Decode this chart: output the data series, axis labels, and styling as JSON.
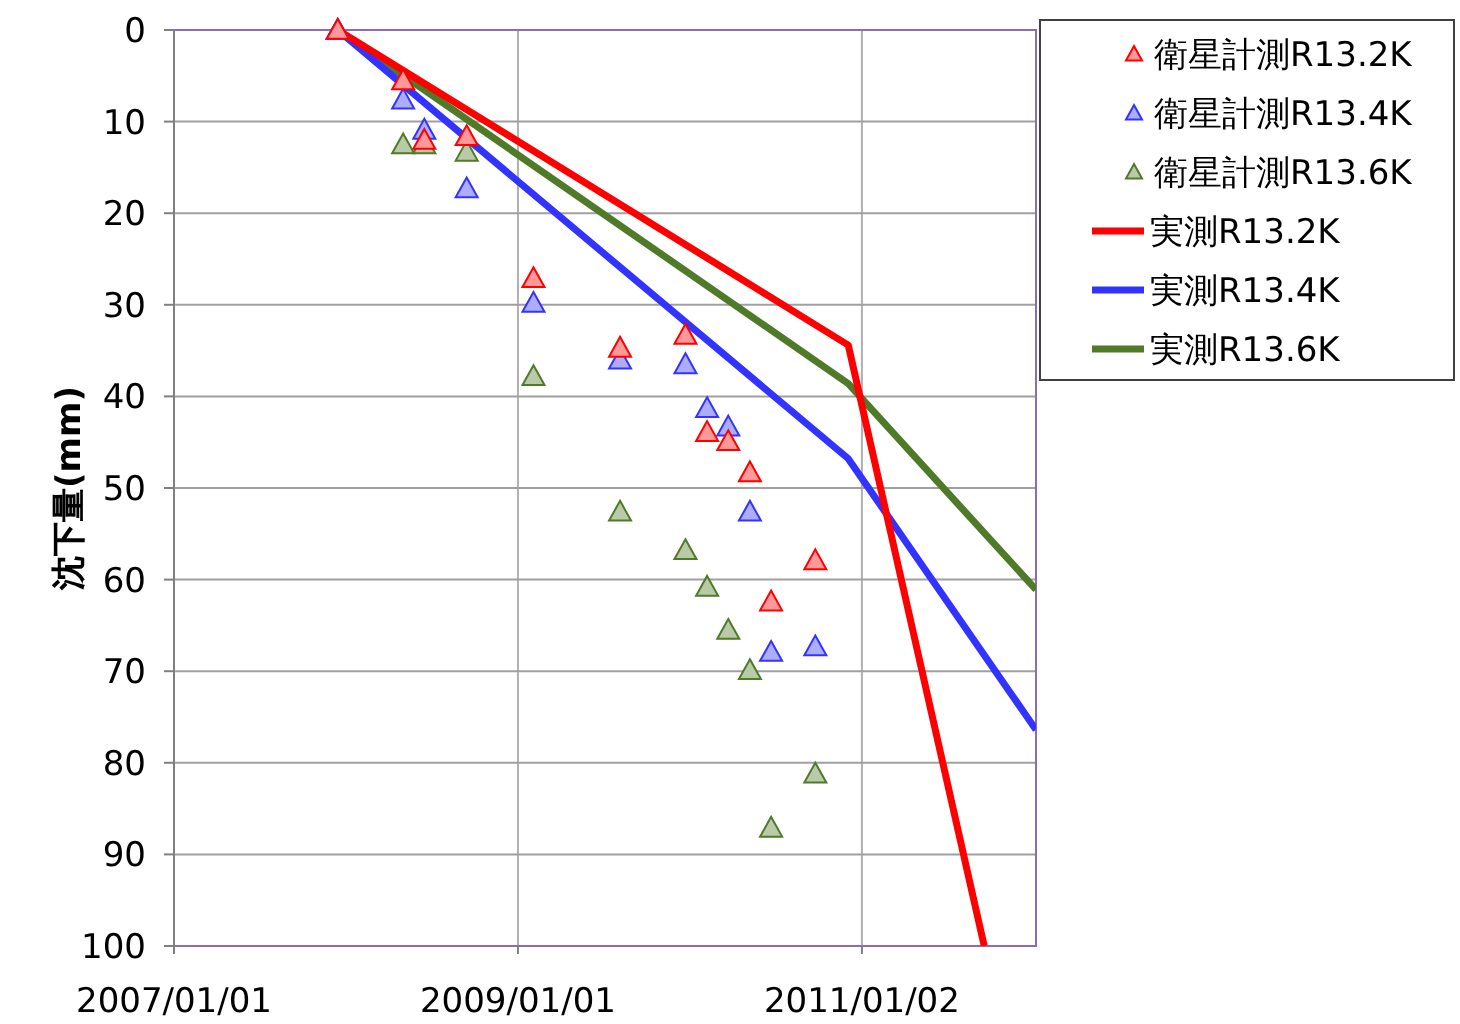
{
  "chart_data": {
    "type": "scatter",
    "ylabel": "沈下量(mm)",
    "xlim": [
      "2007-01-01",
      "2012-01-07"
    ],
    "xticks": [
      {
        "value": "2007-01-01",
        "label": "2007/01/01"
      },
      {
        "value": "2009-01-01",
        "label": "2009/01/01"
      },
      {
        "value": "2011-01-02",
        "label": "2011/01/02"
      }
    ],
    "ylim": [
      100,
      0
    ],
    "yticks": [
      0,
      10,
      20,
      30,
      40,
      50,
      60,
      70,
      80,
      90,
      100
    ],
    "grid": true,
    "legend": "right",
    "marker": "triangle",
    "series": [
      {
        "name": "衛星計測R13.2K",
        "color": "#ff0000",
        "x": [
          "2007-12-15",
          "2008-05-02",
          "2008-06-16",
          "2008-09-14",
          "2009-02-03",
          "2009-08-06",
          "2009-12-23",
          "2010-02-07",
          "2010-03-24",
          "2010-05-09",
          "2010-06-23",
          "2010-09-25"
        ],
        "values": [
          0,
          5.5,
          12,
          11.6,
          27.1,
          34.7,
          33.3,
          43.9,
          44.9,
          48.3,
          62.4,
          57.9
        ]
      },
      {
        "name": "衛星計測R13.4K",
        "color": "#3333ff",
        "x": [
          "2007-12-15",
          "2008-05-02",
          "2008-06-16",
          "2008-09-14",
          "2009-02-03",
          "2009-08-06",
          "2009-12-23",
          "2010-02-07",
          "2010-03-24",
          "2010-05-09",
          "2010-06-23",
          "2010-09-25"
        ],
        "values": [
          0,
          7.6,
          10.9,
          17.3,
          29.8,
          36.0,
          36.5,
          41.3,
          43.3,
          52.6,
          67.9,
          67.3
        ]
      },
      {
        "name": "衛星計測R13.6K",
        "color": "#4f7a28",
        "x": [
          "2007-12-15",
          "2008-05-02",
          "2008-06-16",
          "2008-09-14",
          "2009-02-03",
          "2009-08-06",
          "2009-12-23",
          "2010-02-07",
          "2010-03-24",
          "2010-05-09",
          "2010-06-23",
          "2010-09-25"
        ],
        "values": [
          0,
          12.5,
          12.5,
          13.3,
          37.8,
          52.6,
          56.8,
          60.8,
          65.5,
          69.9,
          87.1,
          81.2
        ]
      },
      {
        "name": "実測R13.2K",
        "type": "line",
        "marker": "none",
        "color": "#ff0000",
        "x": [
          "2007-12-15",
          "2010-12-04",
          "2011-09-19"
        ],
        "values": [
          0,
          34.4,
          100
        ]
      },
      {
        "name": "実測R13.4K",
        "type": "line",
        "marker": "none",
        "color": "#3333ff",
        "x": [
          "2007-12-15",
          "2010-12-04",
          "2012-01-07"
        ],
        "values": [
          0,
          46.8,
          76.4
        ]
      },
      {
        "name": "実測R13.6K",
        "type": "line",
        "marker": "none",
        "color": "#4f7a28",
        "x": [
          "2007-12-15",
          "2010-12-04",
          "2012-01-07"
        ],
        "values": [
          0,
          38.6,
          61.1
        ]
      }
    ]
  }
}
